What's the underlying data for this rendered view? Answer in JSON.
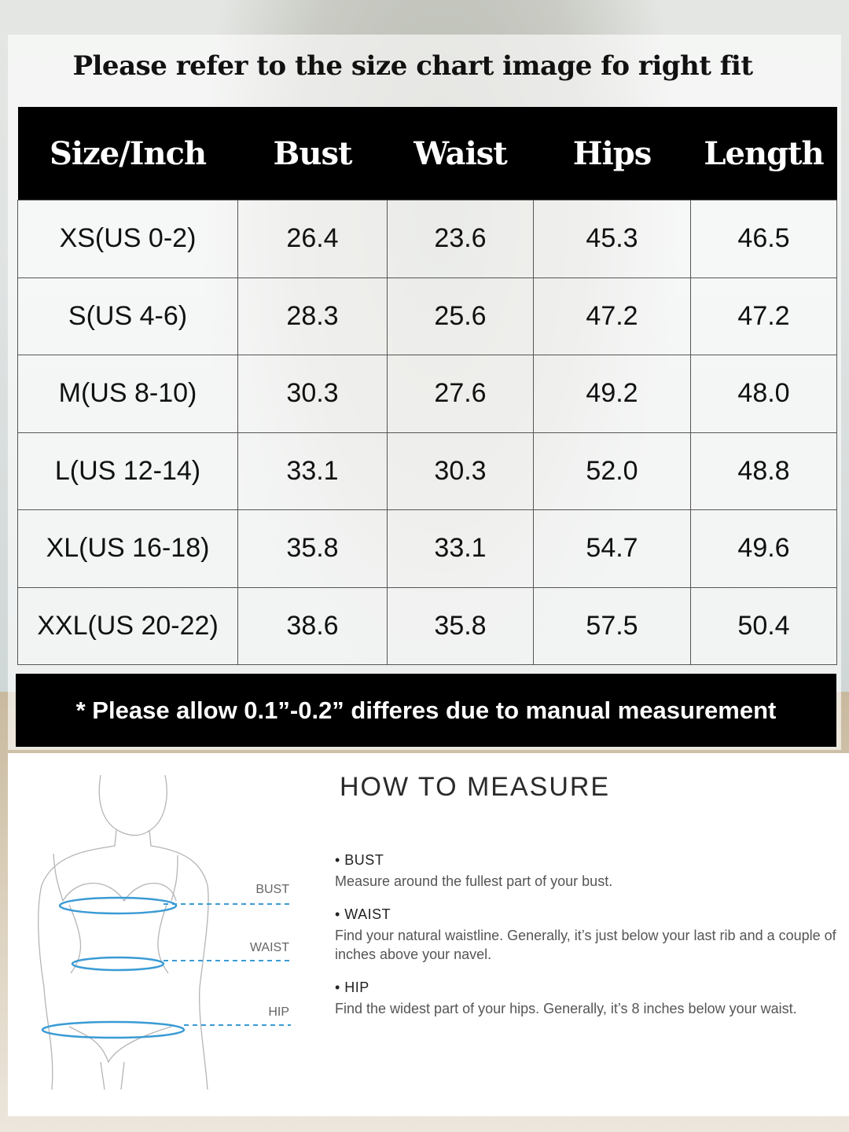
{
  "headline": "Please refer to the size chart image fo right fit",
  "table": {
    "headers": [
      "Size/Inch",
      "Bust",
      "Waist",
      "Hips",
      "Length"
    ],
    "rows": [
      [
        "XS(US 0-2)",
        "26.4",
        "23.6",
        "45.3",
        "46.5"
      ],
      [
        "S(US 4-6)",
        "28.3",
        "25.6",
        "47.2",
        "47.2"
      ],
      [
        "M(US 8-10)",
        "30.3",
        "27.6",
        "49.2",
        "48.0"
      ],
      [
        "L(US 12-14)",
        "33.1",
        "30.3",
        "52.0",
        "48.8"
      ],
      [
        "XL(US 16-18)",
        "35.8",
        "33.1",
        "54.7",
        "49.6"
      ],
      [
        "XXL(US 20-22)",
        "38.6",
        "35.8",
        "57.5",
        "50.4"
      ]
    ]
  },
  "note": "* Please allow 0.1”-0.2” differes due to manual measurement",
  "measure": {
    "title": "HOW TO MEASURE",
    "figure_labels": {
      "bust": "BUST",
      "waist": "WAIST",
      "hip": "HIP"
    },
    "items": [
      {
        "heading": "• BUST",
        "text": "Measure around the fullest part of your bust."
      },
      {
        "heading": "• WAIST",
        "text": "Find your natural waistline. Generally, it’s just below your last rib and a couple of inches above your navel."
      },
      {
        "heading": "• HIP",
        "text": "Find the widest part of your hips. Generally, it’s 8 inches below your waist."
      }
    ]
  },
  "colors": {
    "header_bg": "#000000",
    "measure_line": "#3a9bd5"
  }
}
